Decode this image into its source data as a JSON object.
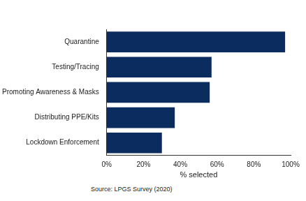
{
  "chart_data": {
    "type": "bar",
    "orientation": "horizontal",
    "categories": [
      "Quarantine",
      "Testing/Tracing",
      "Promoting Awareness & Masks",
      "Distributing PPE/Kits",
      "Lockdown Enforcement"
    ],
    "values": [
      97,
      57,
      56,
      37,
      30
    ],
    "color": "#0b2c5f",
    "xlabel": "% selected",
    "xlim": [
      0,
      100
    ],
    "xticks": [
      {
        "value": 0,
        "label": "0%"
      },
      {
        "value": 20,
        "label": "20%"
      },
      {
        "value": 40,
        "label": "40%"
      },
      {
        "value": 60,
        "label": "60%"
      },
      {
        "value": 80,
        "label": "80%"
      },
      {
        "value": 100,
        "label": "100%"
      }
    ],
    "grid": false,
    "caption": "Source: LPGS Survey (2020)"
  }
}
